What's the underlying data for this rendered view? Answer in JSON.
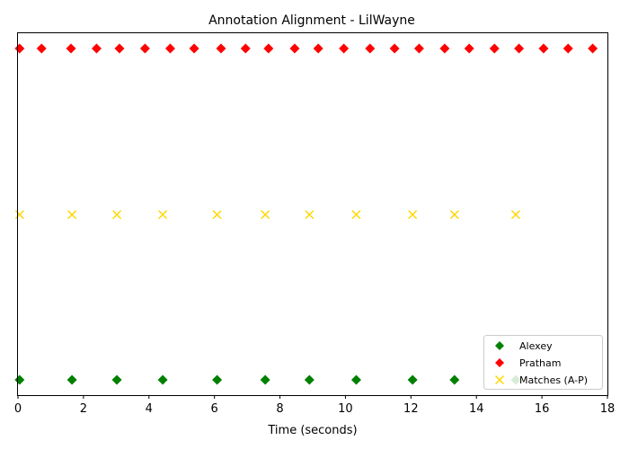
{
  "chart_data": {
    "type": "scatter",
    "title": "Annotation Alignment - LilWayne",
    "xlabel": "Time (seconds)",
    "ylabel": "",
    "xlim": [
      0,
      18
    ],
    "xticks": [
      0,
      2,
      4,
      6,
      8,
      10,
      12,
      14,
      16,
      18
    ],
    "grid": false,
    "legend_position": "lower-right",
    "series": [
      {
        "name": "Alexey",
        "marker": "diamond",
        "color": "#008000",
        "row": "bottom",
        "x": [
          0.05,
          1.65,
          3.02,
          4.42,
          6.08,
          7.55,
          8.9,
          10.33,
          12.05,
          13.33,
          15.2
        ]
      },
      {
        "name": "Pratham",
        "marker": "diamond",
        "color": "#ff0000",
        "row": "top",
        "x": [
          0.05,
          0.72,
          1.62,
          2.4,
          3.1,
          3.88,
          4.65,
          5.38,
          6.2,
          6.95,
          7.65,
          8.45,
          9.17,
          9.95,
          10.75,
          11.5,
          12.25,
          13.03,
          13.78,
          14.55,
          15.3,
          16.05,
          16.8,
          17.55
        ]
      },
      {
        "name": "Matches (A-P)",
        "marker": "x",
        "color": "#ffd700",
        "row": "middle",
        "x": [
          0.05,
          1.65,
          3.02,
          4.42,
          6.08,
          7.55,
          8.9,
          10.33,
          12.05,
          13.33,
          15.2
        ]
      }
    ]
  }
}
